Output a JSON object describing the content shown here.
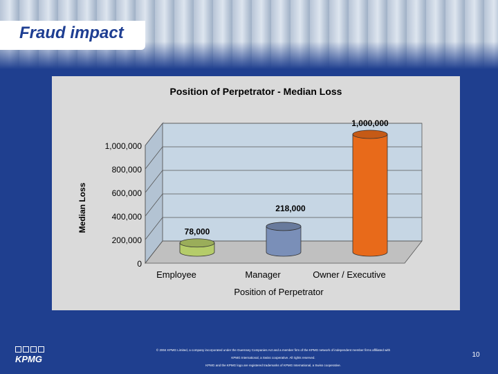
{
  "slide": {
    "title": "Fraud impact",
    "footer_lines": [
      "© 2004 KPMG Limited, a company incorporated under the Guernsey Companies Act and a member firm of the KPMG network of independent member firms affiliated with",
      "KPMG International, a Swiss cooperative. All rights reserved.",
      "KPMG and the KPMG logo are registered trademarks of KPMG International, a Swiss cooperative."
    ],
    "page_number": "10",
    "logo_text": "KPMG"
  },
  "colors": {
    "background": "#1f3f8f",
    "title": "#1e3e92",
    "plot_area": "#c6d6e4",
    "employee_bar": "#b5cc6a",
    "manager_bar": "#7a8fb8",
    "owner_bar": "#e86a1a"
  },
  "chart_data": {
    "type": "bar",
    "title": "Position of Perpetrator - Median Loss",
    "xlabel": "Position of Perpetrator",
    "ylabel": "Median Loss",
    "categories": [
      "Employee",
      "Manager",
      "Owner / Executive"
    ],
    "values": [
      78000,
      218000,
      1000000
    ],
    "data_labels": [
      "78,000",
      "218,000",
      "1,000,000"
    ],
    "ylim": [
      0,
      1000000
    ],
    "y_ticks": [
      0,
      200000,
      400000,
      600000,
      800000,
      1000000
    ],
    "y_tick_labels": [
      "0",
      "200,000",
      "400,000",
      "600,000",
      "800,000",
      "1,000,000"
    ],
    "grid": true,
    "style": "3d-cylinder"
  }
}
